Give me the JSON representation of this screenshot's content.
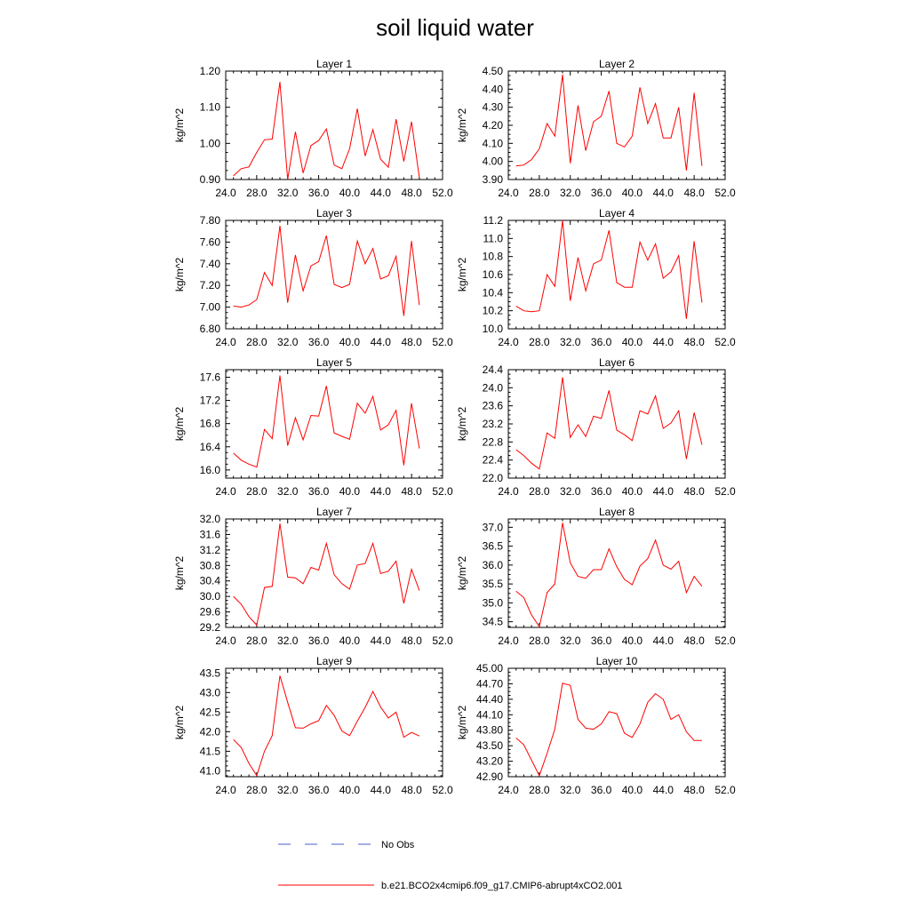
{
  "figure_title": "soil liquid water",
  "colors": {
    "series": "#ff0000",
    "obs": "#4a5cc8",
    "axis": "#000000"
  },
  "legend": {
    "obs_label": "No Obs",
    "series_label": "b.e21.BCO2x4cmip6.f09_g17.CMIP6-abrupt4xCO2.001"
  },
  "chart_data": [
    {
      "type": "line",
      "title": "Layer 1",
      "ylabel": "kg/m^2",
      "xlim": [
        24,
        52
      ],
      "ylim": [
        0.9,
        1.2
      ],
      "xticks": [
        "24.0",
        "28.0",
        "32.0",
        "36.0",
        "40.0",
        "44.0",
        "48.0",
        "52.0"
      ],
      "yticks": [
        "0.90",
        "1.00",
        "1.10",
        "1.20"
      ],
      "series": [
        {
          "x": [
            25,
            26,
            27,
            28,
            29,
            30,
            31,
            32,
            33,
            34,
            35,
            36,
            37,
            38,
            39,
            40,
            41,
            42,
            43,
            44,
            45,
            46,
            47,
            48,
            49
          ],
          "y": [
            0.91,
            0.93,
            0.935,
            0.975,
            1.01,
            1.012,
            1.17,
            0.9,
            1.032,
            0.918,
            0.994,
            1.008,
            1.04,
            0.94,
            0.93,
            0.985,
            1.096,
            0.965,
            1.038,
            0.956,
            0.934,
            1.067,
            0.95,
            1.06,
            0.905
          ]
        }
      ]
    },
    {
      "type": "line",
      "title": "Layer 2",
      "ylabel": "kg/m^2",
      "xlim": [
        24,
        52
      ],
      "ylim": [
        3.9,
        4.5
      ],
      "xticks": [
        "24.0",
        "28.0",
        "32.0",
        "36.0",
        "40.0",
        "44.0",
        "48.0",
        "52.0"
      ],
      "yticks": [
        "3.90",
        "4.00",
        "4.10",
        "4.20",
        "4.30",
        "4.40",
        "4.50"
      ],
      "series": [
        {
          "x": [
            25,
            26,
            27,
            28,
            29,
            30,
            31,
            32,
            33,
            34,
            35,
            36,
            37,
            38,
            39,
            40,
            41,
            42,
            43,
            44,
            45,
            46,
            47,
            48,
            49
          ],
          "y": [
            3.975,
            3.98,
            4.01,
            4.07,
            4.21,
            4.14,
            4.48,
            3.99,
            4.31,
            4.06,
            4.22,
            4.25,
            4.39,
            4.1,
            4.08,
            4.14,
            4.41,
            4.21,
            4.32,
            4.13,
            4.13,
            4.3,
            3.95,
            4.38,
            3.975
          ]
        }
      ]
    },
    {
      "type": "line",
      "title": "Layer 3",
      "ylabel": "kg/m^2",
      "xlim": [
        24,
        52
      ],
      "ylim": [
        6.8,
        7.8
      ],
      "xticks": [
        "24.0",
        "28.0",
        "32.0",
        "36.0",
        "40.0",
        "44.0",
        "48.0",
        "52.0"
      ],
      "yticks": [
        "6.80",
        "7.00",
        "7.20",
        "7.40",
        "7.60",
        "7.80"
      ],
      "series": [
        {
          "x": [
            25,
            26,
            27,
            28,
            29,
            30,
            31,
            32,
            33,
            34,
            35,
            36,
            37,
            38,
            39,
            40,
            41,
            42,
            43,
            44,
            45,
            46,
            47,
            48,
            49
          ],
          "y": [
            7.01,
            7.0,
            7.02,
            7.07,
            7.32,
            7.2,
            7.75,
            7.04,
            7.48,
            7.15,
            7.38,
            7.42,
            7.66,
            7.21,
            7.18,
            7.21,
            7.61,
            7.4,
            7.54,
            7.26,
            7.29,
            7.47,
            6.92,
            7.61,
            7.02
          ]
        }
      ]
    },
    {
      "type": "line",
      "title": "Layer 4",
      "ylabel": "kg/m^2",
      "xlim": [
        24,
        52
      ],
      "ylim": [
        10.0,
        11.2
      ],
      "xticks": [
        "24.0",
        "28.0",
        "32.0",
        "36.0",
        "40.0",
        "44.0",
        "48.0",
        "52.0"
      ],
      "yticks": [
        "10.0",
        "10.2",
        "10.4",
        "10.6",
        "10.8",
        "11.0",
        "11.2"
      ],
      "series": [
        {
          "x": [
            25,
            26,
            27,
            28,
            29,
            30,
            31,
            32,
            33,
            34,
            35,
            36,
            37,
            38,
            39,
            40,
            41,
            42,
            43,
            44,
            45,
            46,
            47,
            48,
            49
          ],
          "y": [
            10.25,
            10.2,
            10.19,
            10.2,
            10.6,
            10.47,
            11.2,
            10.31,
            10.79,
            10.42,
            10.72,
            10.76,
            11.09,
            10.51,
            10.46,
            10.46,
            10.96,
            10.76,
            10.94,
            10.56,
            10.63,
            10.81,
            10.11,
            10.97,
            10.29
          ]
        }
      ]
    },
    {
      "type": "line",
      "title": "Layer 5",
      "ylabel": "kg/m^2",
      "xlim": [
        24,
        52
      ],
      "ylim": [
        15.86,
        17.73
      ],
      "xticks": [
        "24.0",
        "28.0",
        "32.0",
        "36.0",
        "40.0",
        "44.0",
        "48.0",
        "52.0"
      ],
      "yticks": [
        "16.0",
        "16.4",
        "16.8",
        "17.2",
        "17.6"
      ],
      "series": [
        {
          "x": [
            25,
            26,
            27,
            28,
            29,
            30,
            31,
            32,
            33,
            34,
            35,
            36,
            37,
            38,
            39,
            40,
            41,
            42,
            43,
            44,
            45,
            46,
            47,
            48,
            49
          ],
          "y": [
            16.29,
            16.17,
            16.1,
            16.05,
            16.7,
            16.54,
            17.63,
            16.42,
            16.9,
            16.52,
            16.94,
            16.93,
            17.45,
            16.64,
            16.58,
            16.53,
            17.15,
            16.98,
            17.27,
            16.69,
            16.78,
            17.03,
            16.08,
            17.15,
            16.37
          ]
        }
      ]
    },
    {
      "type": "line",
      "title": "Layer 6",
      "ylabel": "kg/m^2",
      "xlim": [
        24,
        52
      ],
      "ylim": [
        22.0,
        24.4
      ],
      "xticks": [
        "24.0",
        "28.0",
        "32.0",
        "36.0",
        "40.0",
        "44.0",
        "48.0",
        "52.0"
      ],
      "yticks": [
        "22.0",
        "22.4",
        "22.8",
        "23.2",
        "23.6",
        "24.0",
        "24.4"
      ],
      "series": [
        {
          "x": [
            25,
            26,
            27,
            28,
            29,
            30,
            31,
            32,
            33,
            34,
            35,
            36,
            37,
            38,
            39,
            40,
            41,
            42,
            43,
            44,
            45,
            46,
            47,
            48,
            49
          ],
          "y": [
            22.63,
            22.5,
            22.33,
            22.2,
            23.0,
            22.88,
            24.23,
            22.9,
            23.18,
            22.92,
            23.37,
            23.32,
            23.94,
            23.06,
            22.96,
            22.83,
            23.49,
            23.42,
            23.82,
            23.1,
            23.22,
            23.49,
            22.42,
            23.45,
            22.74
          ]
        }
      ]
    },
    {
      "type": "line",
      "title": "Layer 7",
      "ylabel": "kg/m^2",
      "xlim": [
        24,
        52
      ],
      "ylim": [
        29.2,
        32.0
      ],
      "xticks": [
        "24.0",
        "28.0",
        "32.0",
        "36.0",
        "40.0",
        "44.0",
        "48.0",
        "52.0"
      ],
      "yticks": [
        "29.2",
        "29.6",
        "30.0",
        "30.4",
        "30.8",
        "31.2",
        "31.6",
        "32.0"
      ],
      "series": [
        {
          "x": [
            25,
            26,
            27,
            28,
            29,
            30,
            31,
            32,
            33,
            34,
            35,
            36,
            37,
            38,
            39,
            40,
            41,
            42,
            43,
            44,
            45,
            46,
            47,
            48,
            49
          ],
          "y": [
            30.0,
            29.8,
            29.48,
            29.26,
            30.23,
            30.26,
            31.88,
            30.5,
            30.48,
            30.33,
            30.75,
            30.68,
            31.37,
            30.56,
            30.33,
            30.19,
            30.81,
            30.85,
            31.37,
            30.59,
            30.65,
            30.91,
            29.82,
            30.7,
            30.15
          ]
        }
      ]
    },
    {
      "type": "line",
      "title": "Layer 8",
      "ylabel": "kg/m^2",
      "xlim": [
        24,
        52
      ],
      "ylim": [
        34.35,
        37.22
      ],
      "xticks": [
        "24.0",
        "28.0",
        "32.0",
        "36.0",
        "40.0",
        "44.0",
        "48.0",
        "52.0"
      ],
      "yticks": [
        "34.5",
        "35.0",
        "35.5",
        "36.0",
        "36.5",
        "37.0"
      ],
      "series": [
        {
          "x": [
            25,
            26,
            27,
            28,
            29,
            30,
            31,
            32,
            33,
            34,
            35,
            36,
            37,
            38,
            39,
            40,
            41,
            42,
            43,
            44,
            45,
            46,
            47,
            48,
            49
          ],
          "y": [
            35.31,
            35.14,
            34.68,
            34.37,
            35.27,
            35.5,
            37.12,
            36.06,
            35.7,
            35.65,
            35.88,
            35.88,
            36.43,
            35.96,
            35.62,
            35.48,
            35.97,
            36.17,
            36.66,
            36.0,
            35.89,
            36.1,
            35.27,
            35.7,
            35.44
          ]
        }
      ]
    },
    {
      "type": "line",
      "title": "Layer 9",
      "ylabel": "kg/m^2",
      "xlim": [
        24,
        52
      ],
      "ylim": [
        40.85,
        43.62
      ],
      "xticks": [
        "24.0",
        "28.0",
        "32.0",
        "36.0",
        "40.0",
        "44.0",
        "48.0",
        "52.0"
      ],
      "yticks": [
        "41.0",
        "41.5",
        "42.0",
        "42.5",
        "43.0",
        "43.5"
      ],
      "series": [
        {
          "x": [
            25,
            26,
            27,
            28,
            29,
            30,
            31,
            32,
            33,
            34,
            35,
            36,
            37,
            38,
            39,
            40,
            41,
            42,
            43,
            44,
            45,
            46,
            47,
            48,
            49
          ],
          "y": [
            41.8,
            41.6,
            41.19,
            40.88,
            41.5,
            41.9,
            43.43,
            42.75,
            42.1,
            42.09,
            42.2,
            42.28,
            42.67,
            42.42,
            42.02,
            41.9,
            42.27,
            42.62,
            43.03,
            42.63,
            42.35,
            42.5,
            41.86,
            41.98,
            41.89
          ]
        }
      ]
    },
    {
      "type": "line",
      "title": "Layer 10",
      "ylabel": "kg/m^2",
      "xlim": [
        24,
        52
      ],
      "ylim": [
        42.9,
        45.0
      ],
      "xticks": [
        "24.0",
        "28.0",
        "32.0",
        "36.0",
        "40.0",
        "44.0",
        "48.0",
        "52.0"
      ],
      "yticks": [
        "42.90",
        "43.20",
        "43.50",
        "43.80",
        "44.10",
        "44.40",
        "44.70",
        "45.00"
      ],
      "series": [
        {
          "x": [
            25,
            26,
            27,
            28,
            29,
            30,
            31,
            32,
            33,
            34,
            35,
            36,
            37,
            38,
            39,
            40,
            41,
            42,
            43,
            44,
            45,
            46,
            47,
            48,
            49
          ],
          "y": [
            43.65,
            43.52,
            43.22,
            42.92,
            43.35,
            43.82,
            44.71,
            44.67,
            44.01,
            43.84,
            43.82,
            43.92,
            44.16,
            44.12,
            43.74,
            43.66,
            43.92,
            44.34,
            44.51,
            44.4,
            44.01,
            44.1,
            43.77,
            43.6,
            43.6
          ]
        }
      ]
    }
  ]
}
